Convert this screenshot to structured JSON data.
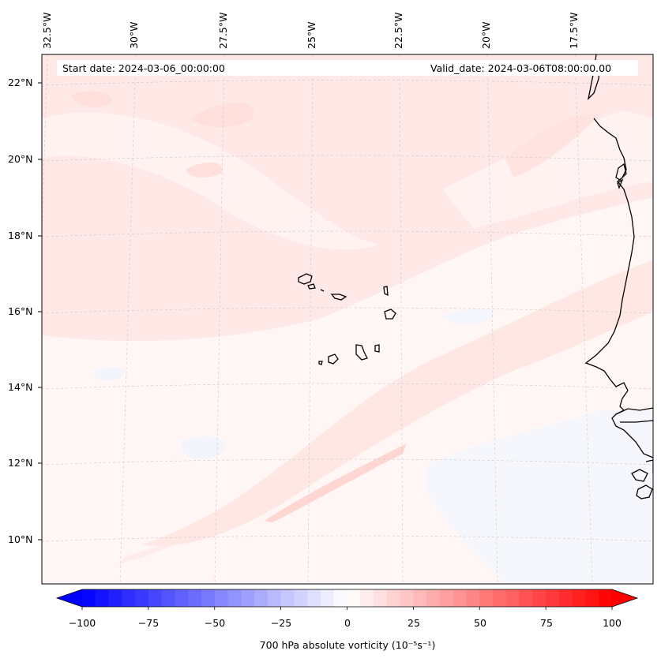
{
  "map": {
    "info_bar": {
      "start_date": "Start date: 2024-03-06_00:00:00",
      "valid_date": "Valid_date: 2024-03-06T08:00:00.00"
    },
    "lon_labels": [
      "32.5°W",
      "30°W",
      "27.5°W",
      "25°W",
      "22.5°W",
      "20°W",
      "17.5°W"
    ],
    "lat_labels": [
      "22°N",
      "20°N",
      "18°N",
      "16°N",
      "14°N",
      "12°N",
      "10°N"
    ],
    "colorbar": {
      "ticks": [
        "−100",
        "−75",
        "−50",
        "−25",
        "0",
        "25",
        "50",
        "75",
        "100"
      ],
      "range": [
        -100,
        100
      ],
      "label": "700 hPa absolute vorticity (10⁻⁵s⁻¹)",
      "cmap": "bwr",
      "extend": "both"
    },
    "colors": {
      "negative_end": "#0000ff",
      "positive_end": "#ff0000",
      "land_outline": "#000000",
      "grid": "#bbbbbb"
    }
  }
}
